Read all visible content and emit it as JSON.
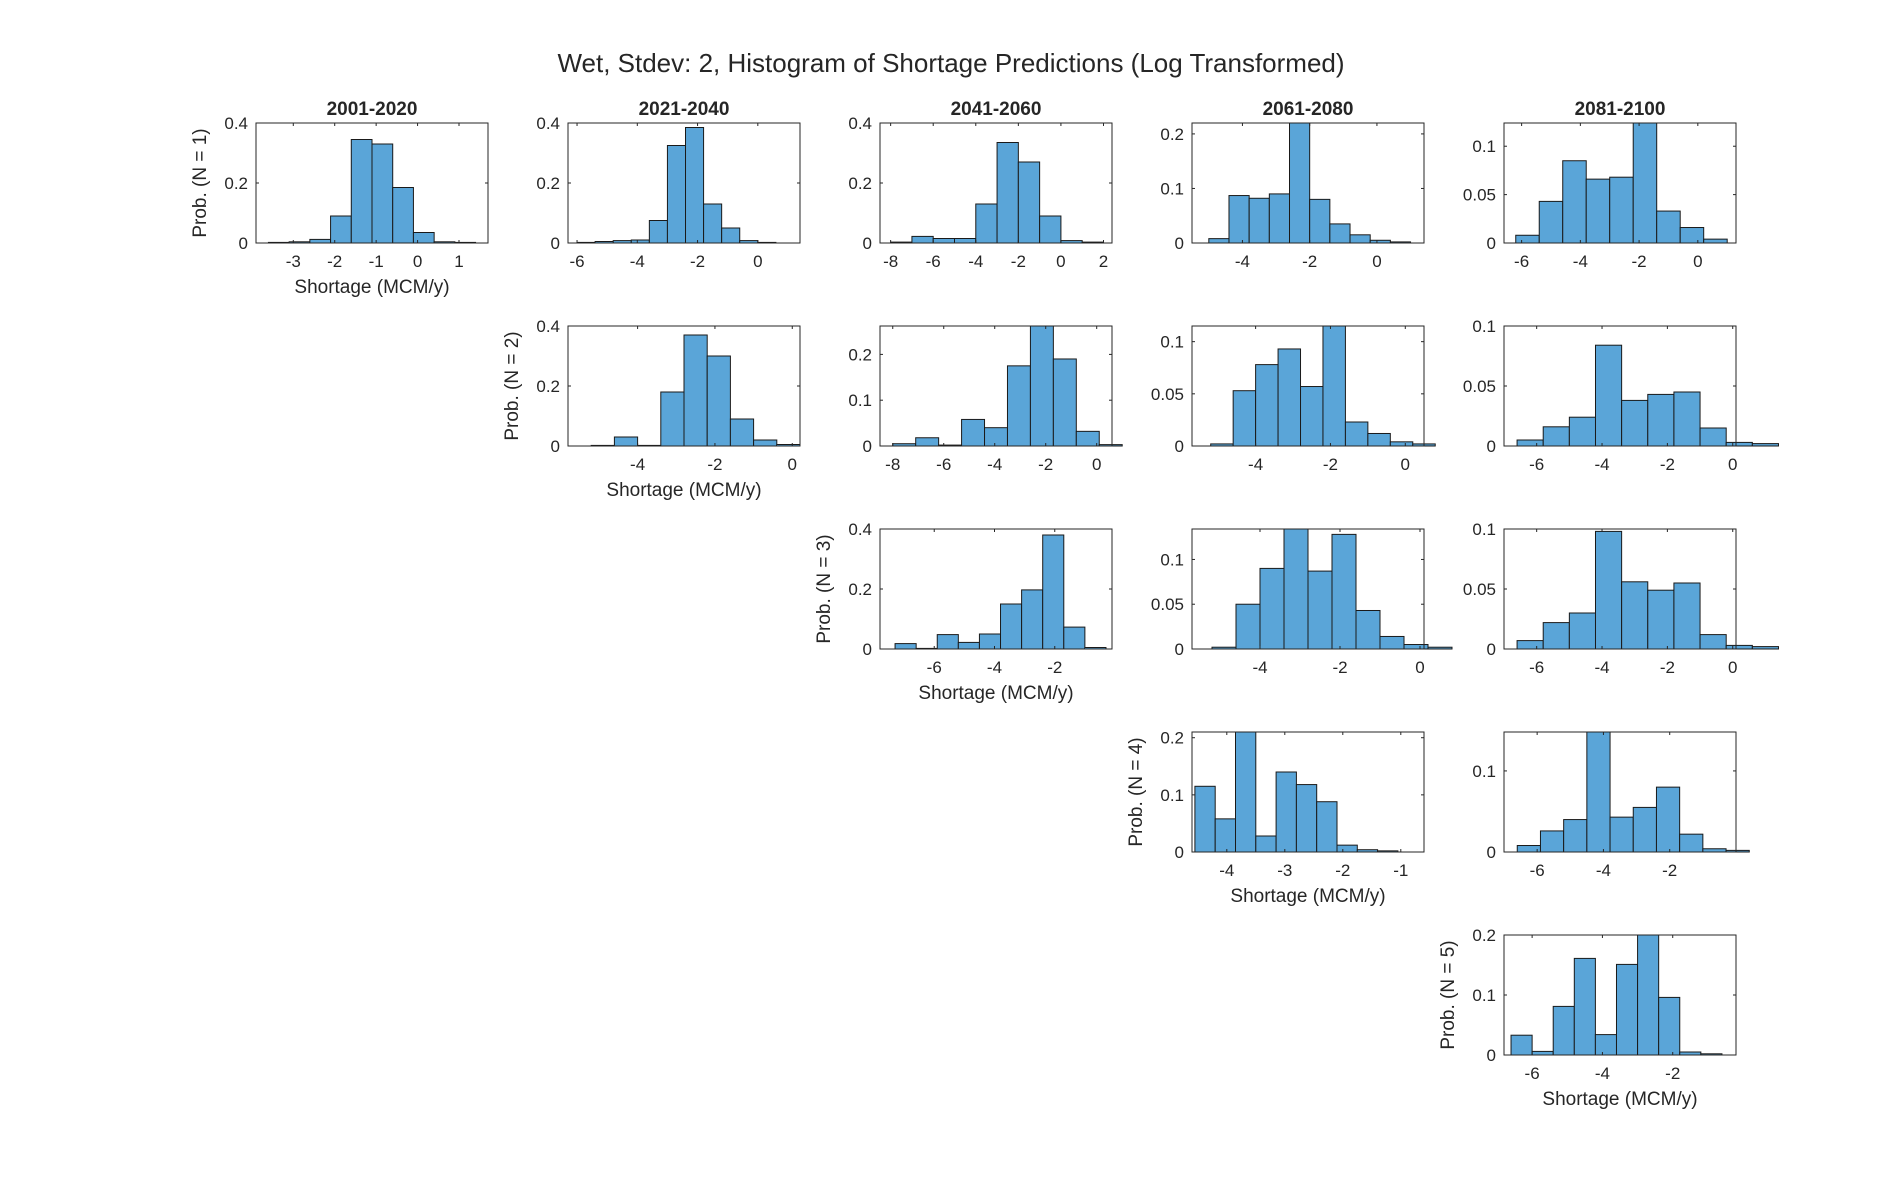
{
  "figure": {
    "title": "Wet, Stdev: 2, Histogram of Shortage Predictions (Log Transformed)"
  },
  "colors": {
    "bar_fill": "#5aa5d8",
    "bar_edge": "#1a1a1a",
    "axes": "#262626",
    "background": "#ffffff"
  },
  "chart_data": [
    {
      "type": "bar",
      "title": "2001-2020",
      "ylabel": "Prob. (N = 1)",
      "xlabel": "Shortage (MCM/y)",
      "row": 1,
      "col": 1,
      "bins": [
        [
          -3.6,
          -3.1,
          0.002
        ],
        [
          -3.1,
          -2.6,
          0.004
        ],
        [
          -2.6,
          -2.1,
          0.012
        ],
        [
          -2.1,
          -1.6,
          0.09
        ],
        [
          -1.6,
          -1.1,
          0.345
        ],
        [
          -1.1,
          -0.6,
          0.33
        ],
        [
          -0.6,
          -0.1,
          0.185
        ],
        [
          -0.1,
          0.4,
          0.035
        ],
        [
          0.4,
          0.9,
          0.004
        ],
        [
          0.9,
          1.4,
          0.002
        ]
      ],
      "xlim": [
        -3.9,
        1.7
      ],
      "ylim": [
        0,
        0.4
      ],
      "xticks": [
        -3,
        -2,
        -1,
        0,
        1
      ],
      "yticks": [
        0,
        0.2,
        0.4
      ]
    },
    {
      "type": "bar",
      "title": "2021-2040",
      "xlabel": "",
      "row": 1,
      "col": 2,
      "bins": [
        [
          -6.0,
          -5.4,
          0.002
        ],
        [
          -5.4,
          -4.8,
          0.005
        ],
        [
          -4.8,
          -4.2,
          0.008
        ],
        [
          -4.2,
          -3.6,
          0.01
        ],
        [
          -3.6,
          -3.0,
          0.075
        ],
        [
          -3.0,
          -2.4,
          0.325
        ],
        [
          -2.4,
          -1.8,
          0.385
        ],
        [
          -1.8,
          -1.2,
          0.13
        ],
        [
          -1.2,
          -0.6,
          0.05
        ],
        [
          -0.6,
          0.0,
          0.008
        ],
        [
          0.0,
          0.6,
          0.002
        ]
      ],
      "xlim": [
        -6.3,
        1.4
      ],
      "ylim": [
        0,
        0.4
      ],
      "xticks": [
        -6,
        -4,
        -2,
        0
      ],
      "yticks": [
        0,
        0.2,
        0.4
      ]
    },
    {
      "type": "bar",
      "title": "2041-2060",
      "xlabel": "",
      "row": 1,
      "col": 3,
      "bins": [
        [
          -8.0,
          -7.0,
          0.003
        ],
        [
          -7.0,
          -6.0,
          0.022
        ],
        [
          -6.0,
          -5.0,
          0.015
        ],
        [
          -5.0,
          -4.0,
          0.015
        ],
        [
          -4.0,
          -3.0,
          0.13
        ],
        [
          -3.0,
          -2.0,
          0.335
        ],
        [
          -2.0,
          -1.0,
          0.27
        ],
        [
          -1.0,
          0.0,
          0.09
        ],
        [
          0.0,
          1.0,
          0.008
        ],
        [
          1.0,
          2.0,
          0.003
        ]
      ],
      "xlim": [
        -8.5,
        2.4
      ],
      "ylim": [
        0,
        0.4
      ],
      "xticks": [
        -8,
        -6,
        -4,
        -2,
        0,
        2
      ],
      "yticks": [
        0,
        0.2,
        0.4
      ]
    },
    {
      "type": "bar",
      "title": "2061-2080",
      "xlabel": "",
      "row": 1,
      "col": 4,
      "bins": [
        [
          -5.0,
          -4.4,
          0.008
        ],
        [
          -4.4,
          -3.8,
          0.087
        ],
        [
          -3.8,
          -3.2,
          0.082
        ],
        [
          -3.2,
          -2.6,
          0.09
        ],
        [
          -2.6,
          -2.0,
          0.23
        ],
        [
          -2.0,
          -1.4,
          0.08
        ],
        [
          -1.4,
          -0.8,
          0.035
        ],
        [
          -0.8,
          -0.2,
          0.015
        ],
        [
          -0.2,
          0.4,
          0.005
        ],
        [
          0.4,
          1.0,
          0.002
        ]
      ],
      "xlim": [
        -5.5,
        1.4
      ],
      "ylim": [
        0,
        0.22
      ],
      "xticks": [
        -4,
        -2,
        0
      ],
      "yticks": [
        0,
        0.1,
        0.2
      ]
    },
    {
      "type": "bar",
      "title": "2081-2100",
      "xlabel": "",
      "row": 1,
      "col": 5,
      "bins": [
        [
          -6.2,
          -5.4,
          0.008
        ],
        [
          -5.4,
          -4.6,
          0.043
        ],
        [
          -4.6,
          -3.8,
          0.085
        ],
        [
          -3.8,
          -3.0,
          0.066
        ],
        [
          -3.0,
          -2.2,
          0.068
        ],
        [
          -2.2,
          -1.4,
          0.15
        ],
        [
          -1.4,
          -0.6,
          0.033
        ],
        [
          -0.6,
          0.2,
          0.016
        ],
        [
          0.2,
          1.0,
          0.004
        ]
      ],
      "xlim": [
        -6.6,
        1.3
      ],
      "ylim": [
        0,
        0.124
      ],
      "xticks": [
        -6,
        -4,
        -2,
        0
      ],
      "yticks": [
        0,
        0.05,
        0.1
      ]
    },
    {
      "type": "bar",
      "title": "",
      "ylabel": "Prob. (N = 2)",
      "xlabel": "Shortage (MCM/y)",
      "row": 2,
      "col": 2,
      "bins": [
        [
          -5.2,
          -4.6,
          0.002
        ],
        [
          -4.6,
          -4.0,
          0.03
        ],
        [
          -4.0,
          -3.4,
          0.002
        ],
        [
          -3.4,
          -2.8,
          0.18
        ],
        [
          -2.8,
          -2.2,
          0.37
        ],
        [
          -2.2,
          -1.6,
          0.3
        ],
        [
          -1.6,
          -1.0,
          0.09
        ],
        [
          -1.0,
          -0.4,
          0.02
        ],
        [
          -0.4,
          0.2,
          0.005
        ]
      ],
      "xlim": [
        -5.8,
        0.2
      ],
      "ylim": [
        0,
        0.4
      ],
      "xticks": [
        -4,
        -2,
        0
      ],
      "yticks": [
        0,
        0.2,
        0.4
      ]
    },
    {
      "type": "bar",
      "title": "",
      "xlabel": "",
      "row": 2,
      "col": 3,
      "bins": [
        [
          -8.0,
          -7.1,
          0.005
        ],
        [
          -7.1,
          -6.2,
          0.018
        ],
        [
          -6.2,
          -5.3,
          0.002
        ],
        [
          -5.3,
          -4.4,
          0.058
        ],
        [
          -4.4,
          -3.5,
          0.04
        ],
        [
          -3.5,
          -2.6,
          0.175
        ],
        [
          -2.6,
          -1.7,
          0.3
        ],
        [
          -1.7,
          -0.8,
          0.19
        ],
        [
          -0.8,
          0.1,
          0.032
        ],
        [
          0.1,
          1.0,
          0.003
        ]
      ],
      "xlim": [
        -8.5,
        0.6
      ],
      "ylim": [
        0,
        0.262
      ],
      "xticks": [
        -8,
        -6,
        -4,
        -2,
        0
      ],
      "yticks": [
        0,
        0.1,
        0.2
      ]
    },
    {
      "type": "bar",
      "title": "",
      "xlabel": "",
      "row": 2,
      "col": 4,
      "bins": [
        [
          -5.2,
          -4.6,
          0.002
        ],
        [
          -4.6,
          -4.0,
          0.053
        ],
        [
          -4.0,
          -3.4,
          0.078
        ],
        [
          -3.4,
          -2.8,
          0.093
        ],
        [
          -2.8,
          -2.2,
          0.057
        ],
        [
          -2.2,
          -1.6,
          0.125
        ],
        [
          -1.6,
          -1.0,
          0.023
        ],
        [
          -1.0,
          -0.4,
          0.012
        ],
        [
          -0.4,
          0.2,
          0.004
        ],
        [
          0.2,
          0.8,
          0.002
        ]
      ],
      "xlim": [
        -5.7,
        0.5
      ],
      "ylim": [
        0,
        0.115
      ],
      "xticks": [
        -4,
        -2,
        0
      ],
      "yticks": [
        0,
        0.05,
        0.1
      ]
    },
    {
      "type": "bar",
      "title": "",
      "xlabel": "",
      "row": 2,
      "col": 5,
      "bins": [
        [
          -6.6,
          -5.8,
          0.005
        ],
        [
          -5.8,
          -5.0,
          0.016
        ],
        [
          -5.0,
          -4.2,
          0.024
        ],
        [
          -4.2,
          -3.4,
          0.084
        ],
        [
          -3.4,
          -2.6,
          0.038
        ],
        [
          -2.6,
          -1.8,
          0.043
        ],
        [
          -1.8,
          -1.0,
          0.045
        ],
        [
          -1.0,
          -0.2,
          0.015
        ],
        [
          -0.2,
          0.6,
          0.003
        ],
        [
          0.6,
          1.4,
          0.002
        ]
      ],
      "xlim": [
        -7.0,
        0.1
      ],
      "ylim": [
        0,
        0.1
      ],
      "xticks": [
        -6,
        -4,
        -2,
        0
      ],
      "yticks": [
        0,
        0.05,
        0.1
      ]
    },
    {
      "type": "bar",
      "title": "",
      "ylabel": "Prob. (N = 3)",
      "xlabel": "Shortage (MCM/y)",
      "row": 3,
      "col": 3,
      "bins": [
        [
          -7.3,
          -6.6,
          0.018
        ],
        [
          -6.6,
          -5.9,
          0.002
        ],
        [
          -5.9,
          -5.2,
          0.048
        ],
        [
          -5.2,
          -4.5,
          0.022
        ],
        [
          -4.5,
          -3.8,
          0.05
        ],
        [
          -3.8,
          -3.1,
          0.15
        ],
        [
          -3.1,
          -2.4,
          0.197
        ],
        [
          -2.4,
          -1.7,
          0.38
        ],
        [
          -1.7,
          -1.0,
          0.073
        ],
        [
          -1.0,
          -0.3,
          0.005
        ]
      ],
      "xlim": [
        -7.8,
        -0.1
      ],
      "ylim": [
        0,
        0.4
      ],
      "xticks": [
        -6,
        -4,
        -2
      ],
      "yticks": [
        0,
        0.2,
        0.4
      ]
    },
    {
      "type": "bar",
      "title": "",
      "xlabel": "",
      "row": 3,
      "col": 4,
      "bins": [
        [
          -5.2,
          -4.6,
          0.002
        ],
        [
          -4.6,
          -4.0,
          0.05
        ],
        [
          -4.0,
          -3.4,
          0.09
        ],
        [
          -3.4,
          -2.8,
          0.135
        ],
        [
          -2.8,
          -2.2,
          0.087
        ],
        [
          -2.2,
          -1.6,
          0.128
        ],
        [
          -1.6,
          -1.0,
          0.043
        ],
        [
          -1.0,
          -0.4,
          0.014
        ],
        [
          -0.4,
          0.2,
          0.005
        ],
        [
          0.2,
          0.8,
          0.002
        ]
      ],
      "xlim": [
        -5.7,
        0.1
      ],
      "ylim": [
        0,
        0.134
      ],
      "xticks": [
        -4,
        -2,
        0
      ],
      "yticks": [
        0,
        0.05,
        0.1
      ]
    },
    {
      "type": "bar",
      "title": "",
      "xlabel": "",
      "row": 3,
      "col": 5,
      "bins": [
        [
          -6.6,
          -5.8,
          0.007
        ],
        [
          -5.8,
          -5.0,
          0.022
        ],
        [
          -5.0,
          -4.2,
          0.03
        ],
        [
          -4.2,
          -3.4,
          0.098
        ],
        [
          -3.4,
          -2.6,
          0.056
        ],
        [
          -2.6,
          -1.8,
          0.049
        ],
        [
          -1.8,
          -1.0,
          0.055
        ],
        [
          -1.0,
          -0.2,
          0.012
        ],
        [
          -0.2,
          0.6,
          0.003
        ],
        [
          0.6,
          1.4,
          0.002
        ]
      ],
      "xlim": [
        -7.0,
        0.1
      ],
      "ylim": [
        0,
        0.1
      ],
      "xticks": [
        -6,
        -4,
        -2,
        0
      ],
      "yticks": [
        0,
        0.05,
        0.1
      ]
    },
    {
      "type": "bar",
      "title": "",
      "ylabel": "Prob. (N = 4)",
      "xlabel": "Shortage (MCM/y)",
      "row": 4,
      "col": 4,
      "bins": [
        [
          -4.55,
          -4.2,
          0.115
        ],
        [
          -4.2,
          -3.85,
          0.058
        ],
        [
          -3.85,
          -3.5,
          0.21
        ],
        [
          -3.5,
          -3.15,
          0.028
        ],
        [
          -3.15,
          -2.8,
          0.14
        ],
        [
          -2.8,
          -2.45,
          0.118
        ],
        [
          -2.45,
          -2.1,
          0.088
        ],
        [
          -2.1,
          -1.75,
          0.012
        ],
        [
          -1.75,
          -1.4,
          0.004
        ],
        [
          -1.4,
          -1.05,
          0.002
        ]
      ],
      "xlim": [
        -4.6,
        -0.6
      ],
      "ylim": [
        0,
        0.21
      ],
      "xticks": [
        -4,
        -3,
        -2,
        -1
      ],
      "yticks": [
        0,
        0.1,
        0.2
      ]
    },
    {
      "type": "bar",
      "title": "",
      "xlabel": "",
      "row": 4,
      "col": 5,
      "bins": [
        [
          -6.6,
          -5.9,
          0.008
        ],
        [
          -5.9,
          -5.2,
          0.026
        ],
        [
          -5.2,
          -4.5,
          0.04
        ],
        [
          -4.5,
          -3.8,
          0.148
        ],
        [
          -3.8,
          -3.1,
          0.043
        ],
        [
          -3.1,
          -2.4,
          0.055
        ],
        [
          -2.4,
          -1.7,
          0.08
        ],
        [
          -1.7,
          -1.0,
          0.022
        ],
        [
          -1.0,
          -0.3,
          0.004
        ],
        [
          -0.3,
          0.4,
          0.002
        ]
      ],
      "xlim": [
        -7.0,
        0.0
      ],
      "ylim": [
        0,
        0.148
      ],
      "xticks": [
        -6,
        -4,
        -2
      ],
      "yticks": [
        0,
        0.1
      ]
    },
    {
      "type": "bar",
      "title": "",
      "ylabel": "Prob. (N = 5)",
      "xlabel": "Shortage (MCM/y)",
      "row": 5,
      "col": 5,
      "bins": [
        [
          -6.6,
          -6.0,
          0.033
        ],
        [
          -6.0,
          -5.4,
          0.006
        ],
        [
          -5.4,
          -4.8,
          0.081
        ],
        [
          -4.8,
          -4.2,
          0.161
        ],
        [
          -4.2,
          -3.6,
          0.034
        ],
        [
          -3.6,
          -3.0,
          0.151
        ],
        [
          -3.0,
          -2.4,
          0.2
        ],
        [
          -2.4,
          -1.8,
          0.096
        ],
        [
          -1.8,
          -1.2,
          0.005
        ],
        [
          -1.2,
          -0.6,
          0.002
        ]
      ],
      "xlim": [
        -6.8,
        -0.2
      ],
      "ylim": [
        0,
        0.2
      ],
      "xticks": [
        -6,
        -4,
        -2
      ],
      "yticks": [
        0,
        0.1,
        0.2
      ]
    }
  ]
}
